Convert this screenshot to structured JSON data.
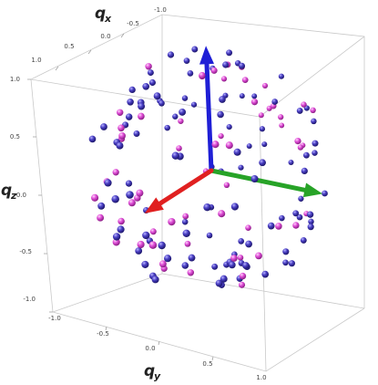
{
  "chart_data": {
    "type": "scatter",
    "title": "",
    "axes": {
      "x": {
        "label": "q",
        "sub": "x",
        "ticks": [
          "-1.0",
          "-0.5",
          "0.0",
          "0.5",
          "1.0"
        ],
        "range": [
          -1,
          1
        ]
      },
      "y": {
        "label": "q",
        "sub": "y",
        "ticks": [
          "-1.0",
          "-0.5",
          "0.0",
          "0.5",
          "1.0"
        ],
        "range": [
          -1,
          1
        ]
      },
      "z": {
        "label": "q",
        "sub": "z",
        "ticks": [
          "-1.0",
          "-0.5",
          "0.0",
          "0.5",
          "1.0"
        ],
        "range": [
          -1,
          1
        ]
      }
    },
    "grid": false,
    "series": [
      {
        "color": "#4a3fc4",
        "marker": "sphere",
        "count": 110
      },
      {
        "color": "#e04fd8",
        "marker": "sphere",
        "count": 60
      }
    ],
    "vectors": [
      {
        "color": "#1f1fd6",
        "direction": [
          0,
          0,
          1
        ],
        "axis": "z"
      },
      {
        "color": "#27a327",
        "direction": [
          0,
          1,
          0
        ],
        "axis": "y"
      },
      {
        "color": "#e02020",
        "direction": [
          1,
          0,
          0
        ],
        "axis": "x"
      }
    ]
  }
}
